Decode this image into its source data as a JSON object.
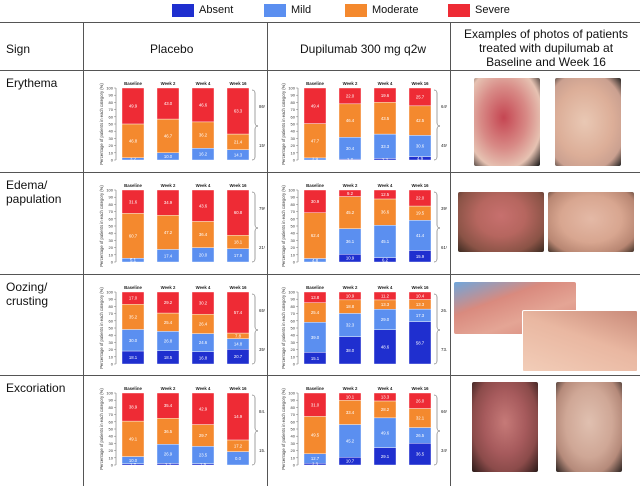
{
  "legend": [
    {
      "label": "Absent",
      "color": "#1f2fcf"
    },
    {
      "label": "Mild",
      "color": "#5b8ff0"
    },
    {
      "label": "Moderate",
      "color": "#f4892e"
    },
    {
      "label": "Severe",
      "color": "#ee2b35"
    }
  ],
  "header": {
    "sign": "Sign",
    "placebo": "Placebo",
    "dupilumab": "Dupilumab 300 mg q2w",
    "photos": "Examples of photos of patients treated with dupilumab at Baseline and Week 16"
  },
  "rows": [
    {
      "sign": "Erythema"
    },
    {
      "sign": "Edema/\npapulation"
    },
    {
      "sign": "Oozing/\ncrusting"
    },
    {
      "sign": "Excoriation"
    }
  ],
  "chart_data": [
    {
      "type": "bar",
      "sign": "Erythema",
      "arm": "Placebo",
      "categories": [
        "Baseline",
        "Week 2",
        "Week 4",
        "Week 16"
      ],
      "ylabel": "Percentage of patients in each category (%)",
      "ylim": [
        0,
        100
      ],
      "series": [
        {
          "name": "Absent",
          "values": [
            0,
            0,
            0,
            0
          ]
        },
        {
          "name": "Mild",
          "values": [
            3.2,
            10.0,
            16.2,
            14.3
          ]
        },
        {
          "name": "Moderate",
          "values": [
            46.8,
            46.7,
            36.2,
            21.4
          ]
        },
        {
          "name": "Severe",
          "values": [
            49.9,
            43.0,
            46.6,
            63.3
          ]
        }
      ],
      "labels": [
        [
          "3.2",
          "46.8",
          "49.9"
        ],
        [
          "10.0",
          "46.7",
          "43.0"
        ],
        [
          "16.2",
          "36.2",
          "46.6"
        ],
        [
          "14.3",
          "21.4",
          "63.3"
        ]
      ],
      "brackets": [
        "86%",
        "15%"
      ]
    },
    {
      "type": "bar",
      "sign": "Erythema",
      "arm": "Dupilumab 300 mg q2w",
      "categories": [
        "Baseline",
        "Week 2",
        "Week 4",
        "Week 16"
      ],
      "ylabel": "Percentage of patients in each category (%)",
      "ylim": [
        0,
        100
      ],
      "series": [
        {
          "name": "Absent",
          "values": [
            0,
            1.2,
            2.2,
            4.9
          ]
        },
        {
          "name": "Mild",
          "values": [
            2.9,
            30.4,
            33.3,
            30.6
          ]
        },
        {
          "name": "Moderate",
          "values": [
            47.7,
            46.4,
            43.5,
            42.5
          ]
        },
        {
          "name": "Severe",
          "values": [
            49.4,
            22.0,
            19.6,
            25.7
          ]
        }
      ],
      "labels": [
        [
          "2.9",
          "47.7",
          "49.4"
        ],
        [
          "1.2",
          "30.4",
          "46.4",
          "22.0"
        ],
        [
          "2.2",
          "33.3",
          "43.5",
          "19.6"
        ],
        [
          "4.9",
          "30.6",
          "42.5",
          "25.7"
        ]
      ],
      "brackets": [
        "64%",
        "45%"
      ]
    },
    {
      "type": "bar",
      "sign": "Edema/papulation",
      "arm": "Placebo",
      "categories": [
        "Baseline",
        "Week 2",
        "Week 4",
        "Week 16"
      ],
      "ylabel": "Percentage of patients in each category (%)",
      "ylim": [
        0,
        100
      ],
      "series": [
        {
          "name": "Absent",
          "values": [
            0,
            0,
            0,
            0
          ]
        },
        {
          "name": "Mild",
          "values": [
            5.1,
            17.4,
            20.0,
            17.9
          ]
        },
        {
          "name": "Moderate",
          "values": [
            60.7,
            47.2,
            36.4,
            18.1
          ]
        },
        {
          "name": "Severe",
          "values": [
            31.6,
            34.9,
            43.6,
            60.8
          ]
        }
      ],
      "labels": [
        [
          "5.1",
          "60.7",
          "31.6"
        ],
        [
          "17.4",
          "47.2",
          "34.9"
        ],
        [
          "20.0",
          "36.4",
          "43.6"
        ],
        [
          "17.9",
          "18.1",
          "60.8"
        ]
      ],
      "brackets": [
        "79%",
        "21%"
      ]
    },
    {
      "type": "bar",
      "sign": "Edema/papulation",
      "arm": "Dupilumab 300 mg q2w",
      "categories": [
        "Baseline",
        "Week 2",
        "Week 4",
        "Week 16"
      ],
      "ylabel": "Percentage of patients in each category (%)",
      "ylim": [
        0,
        100
      ],
      "series": [
        {
          "name": "Absent",
          "values": [
            0,
            10.9,
            6.2,
            15.9
          ]
        },
        {
          "name": "Mild",
          "values": [
            4.8,
            36.1,
            45.1,
            41.4
          ]
        },
        {
          "name": "Moderate",
          "values": [
            62.4,
            45.2,
            36.6,
            19.5
          ]
        },
        {
          "name": "Severe",
          "values": [
            30.9,
            9.2,
            12.5,
            22.0
          ]
        }
      ],
      "labels": [
        [
          "4.8",
          "62.4",
          "30.9"
        ],
        [
          "10.9",
          "36.1",
          "45.2",
          "9.2"
        ],
        [
          "6.2",
          "45.1",
          "36.6",
          "12.5"
        ],
        [
          "15.9",
          "41.4",
          "19.5",
          "22.0"
        ]
      ],
      "brackets": [
        "39%",
        "61%"
      ]
    },
    {
      "type": "bar",
      "sign": "Oozing/crusting",
      "arm": "Placebo",
      "categories": [
        "Baseline",
        "Week 2",
        "Week 4",
        "Week 16"
      ],
      "ylabel": "Percentage of patients in each category (%)",
      "ylim": [
        0,
        100
      ],
      "series": [
        {
          "name": "Absent",
          "values": [
            18.1,
            18.5,
            16.8,
            20.7
          ]
        },
        {
          "name": "Mild",
          "values": [
            30.0,
            26.8,
            24.6,
            14.8
          ]
        },
        {
          "name": "Moderate",
          "values": [
            35.2,
            25.4,
            26.4,
            7.8
          ]
        },
        {
          "name": "Severe",
          "values": [
            17.0,
            29.2,
            30.2,
            57.4
          ]
        }
      ],
      "labels": [
        [
          "18.1",
          "30.0",
          "35.2",
          "17.0"
        ],
        [
          "18.5",
          "26.8",
          "25.4",
          "29.2"
        ],
        [
          "16.8",
          "24.6",
          "26.4",
          "30.2"
        ],
        [
          "20.7",
          "14.8",
          "7.8",
          "57.4"
        ]
      ],
      "brackets": [
        "65%",
        "35%"
      ]
    },
    {
      "type": "bar",
      "sign": "Oozing/crusting",
      "arm": "Dupilumab 300 mg q2w",
      "categories": [
        "Baseline",
        "Week 2",
        "Week 4",
        "Week 16"
      ],
      "ylabel": "Percentage of patients in each category (%)",
      "ylim": [
        0,
        100
      ],
      "series": [
        {
          "name": "Absent",
          "values": [
            15.1,
            38.0,
            48.6,
            58.7
          ]
        },
        {
          "name": "Mild",
          "values": [
            39.0,
            32.3,
            29.0,
            17.3
          ]
        },
        {
          "name": "Moderate",
          "values": [
            25.4,
            18.8,
            13.3,
            13.3
          ]
        },
        {
          "name": "Severe",
          "values": [
            13.8,
            10.9,
            11.2,
            10.4
          ]
        }
      ],
      "labels": [
        [
          "15.1",
          "39.0",
          "25.4",
          "13.8"
        ],
        [
          "38.0",
          "32.3",
          "18.8",
          "10.9"
        ],
        [
          "48.6",
          "29.0",
          "13.3",
          "11.2"
        ],
        [
          "58.7",
          "17.3",
          "13.3",
          "10.4"
        ]
      ],
      "brackets": [
        "26.5%",
        "73.5%"
      ]
    },
    {
      "type": "bar",
      "sign": "Excoriation",
      "arm": "Placebo",
      "categories": [
        "Baseline",
        "Week 2",
        "Week 4",
        "Week 16"
      ],
      "ylabel": "Percentage of patients in each category (%)",
      "ylim": [
        0,
        100
      ],
      "series": [
        {
          "name": "Absent",
          "values": [
            1.7,
            2.2,
            1.9,
            0.0
          ]
        },
        {
          "name": "Mild",
          "values": [
            10.0,
            26.9,
            23.5,
            17.2
          ]
        },
        {
          "name": "Moderate",
          "values": [
            49.1,
            36.5,
            29.7,
            14.9
          ]
        },
        {
          "name": "Severe",
          "values": [
            38.9,
            35.4,
            42.9,
            60.2
          ]
        }
      ],
      "labels": [
        [
          "1.7",
          "10.0",
          "49.1",
          "38.9"
        ],
        [
          "2.2",
          "26.9",
          "36.5",
          "35.4"
        ],
        [
          "1.9",
          "23.5",
          "29.7",
          "42.9"
        ],
        [
          "0.0",
          "17.2",
          "14.9",
          "60.2"
        ]
      ],
      "brackets": [
        "84.8%",
        "15.2%"
      ]
    },
    {
      "type": "bar",
      "sign": "Excoriation",
      "arm": "Dupilumab 300 mg q2w",
      "categories": [
        "Baseline",
        "Week 2",
        "Week 4",
        "Week 16"
      ],
      "ylabel": "Percentage of patients in each category (%)",
      "ylim": [
        0,
        100
      ],
      "series": [
        {
          "name": "Absent",
          "values": [
            2.3,
            10.7,
            29.1,
            36.5
          ]
        },
        {
          "name": "Mild",
          "values": [
            12.7,
            45.2,
            49.6,
            26.5
          ]
        },
        {
          "name": "Moderate",
          "values": [
            49.5,
            33.4,
            28.2,
            32.1
          ]
        },
        {
          "name": "Severe",
          "values": [
            31.0,
            10.1,
            13.3,
            26.0
          ]
        }
      ],
      "labels": [
        [
          "2.3",
          "12.7",
          "49.5",
          "31.0"
        ],
        [
          "10.7",
          "45.2",
          "33.4",
          "10.1"
        ],
        [
          "29.1",
          "49.6",
          "28.2",
          "13.3"
        ],
        [
          "36.5",
          "26.5",
          "32.1",
          "26.0"
        ]
      ],
      "brackets": [
        "66%",
        "34%"
      ]
    }
  ]
}
